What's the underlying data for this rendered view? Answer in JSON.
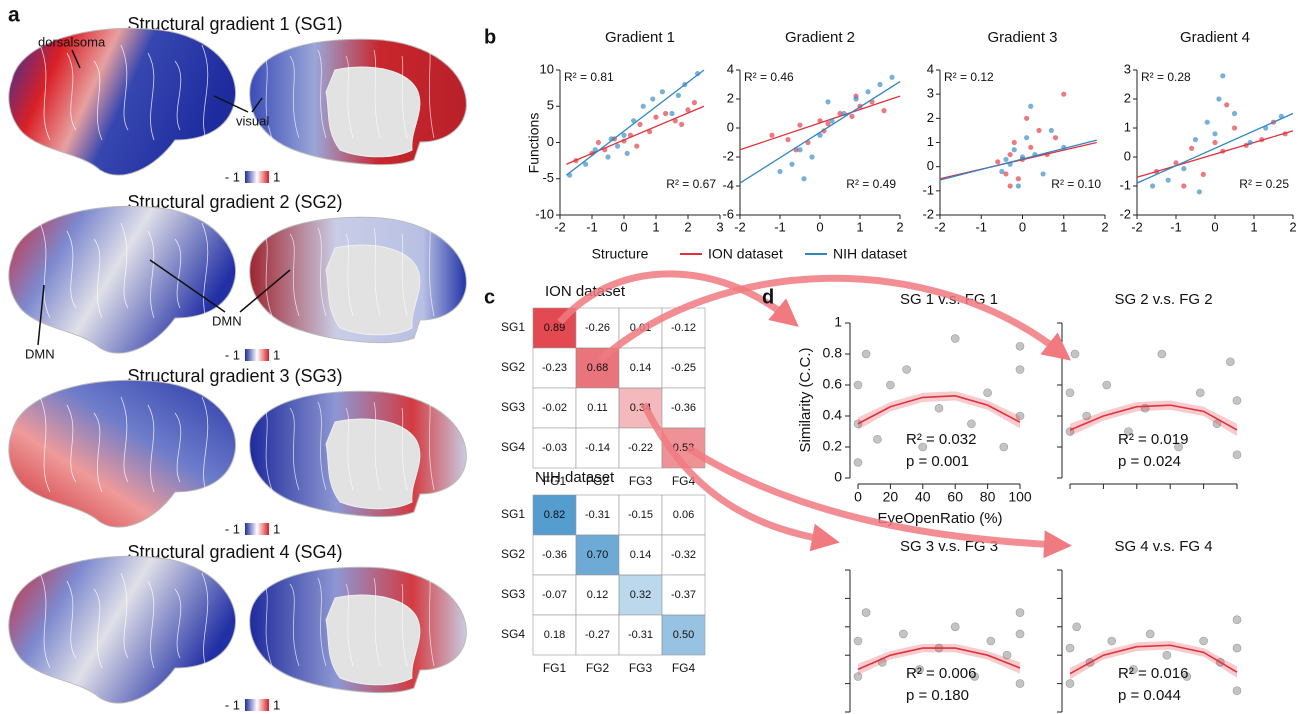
{
  "panel_labels": [
    "a",
    "b",
    "c",
    "d"
  ],
  "panel_a": {
    "titles": [
      "Structural gradient 1 (SG1)",
      "Structural gradient 2 (SG2)",
      "Structural gradient 3 (SG3)",
      "Structural gradient 4 (SG4)"
    ],
    "colorbar": {
      "low": "- 1",
      "high": "1"
    },
    "annotations": [
      "dorsalsoma",
      "visual",
      "DMN",
      "DMN"
    ]
  },
  "panel_b": {
    "type": "scatter",
    "y_label": "Functions",
    "x_label": "Structure",
    "datasets": [
      {
        "name": "ION dataset",
        "color": "#e0323c"
      },
      {
        "name": "NIH dataset",
        "color": "#2f86c4"
      }
    ],
    "plots": [
      {
        "title": "Gradient 1",
        "xlim": [
          -2,
          3
        ],
        "xticks": [
          -2,
          -1,
          0,
          1,
          2,
          3
        ],
        "ylim": [
          -10,
          10
        ],
        "yticks": [
          -10,
          -5,
          0,
          5,
          10
        ],
        "series": [
          {
            "r2_label": "R² = 0.81",
            "x": [
              -1.5,
              -1.0,
              -0.6,
              -0.3,
              0,
              0.2,
              0.5,
              0.8,
              1.0,
              1.3,
              1.6,
              2.0,
              2.2,
              -0.8,
              0.4,
              1.8
            ],
            "y": [
              -2.5,
              -1.5,
              -1.0,
              0.5,
              0.2,
              1.0,
              2.5,
              1.5,
              3.5,
              4.0,
              3.0,
              4.5,
              5.5,
              0.0,
              -0.5,
              2.5
            ],
            "fit_x": [
              -1.8,
              2.5
            ],
            "fit_y": [
              -3,
              5
            ]
          },
          {
            "r2_label": "R² = 0.67",
            "x": [
              -1.7,
              -1.2,
              -0.9,
              -0.5,
              -0.2,
              0,
              0.3,
              0.6,
              0.9,
              1.2,
              1.5,
              1.9,
              2.3,
              -0.4,
              0.1,
              1.7
            ],
            "y": [
              -4.5,
              -3,
              -1,
              -2,
              -0.5,
              1,
              3,
              5,
              6,
              7,
              4,
              8,
              9.5,
              0.5,
              -1.5,
              6.5
            ],
            "fit_x": [
              -1.8,
              2.5
            ],
            "fit_y": [
              -4.5,
              10
            ]
          }
        ]
      },
      {
        "title": "Gradient 2",
        "xlim": [
          -2,
          2
        ],
        "xticks": [
          -2,
          -1,
          0,
          1,
          2
        ],
        "ylim": [
          -6,
          4
        ],
        "yticks": [
          -6,
          -4,
          -2,
          0,
          2,
          4
        ],
        "series": [
          {
            "r2_label": "R² = 0.46",
            "x": [
              -1.2,
              -0.8,
              -0.5,
              -0.3,
              0,
              0.2,
              0.5,
              0.8,
              1.0,
              1.3,
              1.6,
              -0.6,
              0.1,
              0.9
            ],
            "y": [
              -0.5,
              -0.8,
              0.2,
              -1.0,
              0.5,
              0.3,
              1.0,
              0.8,
              1.5,
              1.8,
              1.2,
              -1.5,
              -0.2,
              2.2
            ],
            "fit_x": [
              -2,
              2
            ],
            "fit_y": [
              -1.5,
              2.2
            ]
          },
          {
            "r2_label": "R² = 0.49",
            "x": [
              -1.0,
              -0.7,
              -0.5,
              -0.2,
              0,
              0.3,
              0.6,
              0.9,
              1.2,
              1.5,
              1.8,
              -0.4,
              0.2
            ],
            "y": [
              -3.0,
              -2.5,
              -1.5,
              -2.0,
              -0.5,
              0.5,
              1.0,
              2.0,
              2.5,
              3.0,
              3.5,
              -3.5,
              1.8
            ],
            "fit_x": [
              -2,
              2
            ],
            "fit_y": [
              -3.8,
              3.2
            ]
          }
        ]
      },
      {
        "title": "Gradient 3",
        "xlim": [
          -2,
          2
        ],
        "xticks": [
          -2,
          -1,
          0,
          1,
          2
        ],
        "ylim": [
          -2,
          4
        ],
        "yticks": [
          -2,
          -1,
          0,
          1,
          2,
          3,
          4
        ],
        "series": [
          {
            "r2_label": "R² = 0.12",
            "x": [
              -0.6,
              -0.4,
              -0.3,
              -0.2,
              -0.1,
              0,
              0.2,
              0.4,
              0.6,
              1.0,
              -0.3,
              0.1,
              0.8
            ],
            "y": [
              0.2,
              -0.3,
              0.5,
              1.0,
              -0.5,
              0.3,
              0.8,
              1.5,
              0.5,
              3.0,
              -0.8,
              2.0,
              1.2
            ],
            "fit_x": [
              -2,
              1.8
            ],
            "fit_y": [
              -0.5,
              1.0
            ]
          },
          {
            "r2_label": "R² = 0.10",
            "x": [
              -0.5,
              -0.3,
              -0.2,
              -0.1,
              0,
              0.1,
              0.3,
              0.5,
              0.7,
              1.0,
              -0.4,
              0.2
            ],
            "y": [
              -0.2,
              0.1,
              0.7,
              -0.8,
              0.4,
              1.2,
              0.5,
              -0.3,
              1.5,
              0.8,
              0.3,
              2.5
            ],
            "fit_x": [
              -2,
              1.8
            ],
            "fit_y": [
              -0.55,
              1.1
            ]
          }
        ]
      },
      {
        "title": "Gradient 4",
        "xlim": [
          -2,
          2
        ],
        "xticks": [
          -2,
          -1,
          0,
          1,
          2
        ],
        "ylim": [
          -2,
          3
        ],
        "yticks": [
          -2,
          -1,
          0,
          1,
          2,
          3
        ],
        "series": [
          {
            "r2_label": "R² = 0.28",
            "x": [
              -1.5,
              -1.0,
              -0.6,
              -0.3,
              0,
              0.2,
              0.5,
              0.8,
              1.2,
              1.5,
              1.8,
              -0.8,
              0.3
            ],
            "y": [
              -0.5,
              -0.2,
              0.3,
              -0.6,
              0.5,
              0.2,
              1.0,
              0.4,
              0.6,
              1.2,
              0.8,
              -1.0,
              1.8
            ],
            "fit_x": [
              -2,
              2
            ],
            "fit_y": [
              -0.7,
              0.9
            ]
          },
          {
            "r2_label": "R² = 0.25",
            "x": [
              -1.6,
              -1.2,
              -0.8,
              -0.5,
              -0.2,
              0,
              0.2,
              0.5,
              0.9,
              1.3,
              1.7,
              -0.4,
              0.1
            ],
            "y": [
              -1.0,
              -0.8,
              -0.4,
              0.6,
              1.2,
              0.8,
              2.8,
              1.5,
              0.5,
              1.0,
              1.4,
              -1.2,
              2.0
            ],
            "fit_x": [
              -2,
              2
            ],
            "fit_y": [
              -0.9,
              1.5
            ]
          }
        ]
      }
    ]
  },
  "panel_c": {
    "matrices": [
      {
        "title": "ION dataset",
        "color": "#e0323c",
        "rows": [
          "SG1",
          "SG2",
          "SG3",
          "SG4"
        ],
        "cols": [
          "FG1",
          "FG2",
          "FG3",
          "FG4"
        ],
        "values": [
          [
            0.89,
            -0.26,
            0.01,
            -0.12
          ],
          [
            -0.23,
            0.68,
            0.14,
            -0.25
          ],
          [
            -0.02,
            0.11,
            0.34,
            -0.36
          ],
          [
            -0.03,
            -0.14,
            -0.22,
            0.53
          ]
        ],
        "value_labels": [
          [
            "0.89",
            "-0.26",
            "0.01",
            "-0.12"
          ],
          [
            "-0.23",
            "0.68",
            "0.14",
            "-0.25"
          ],
          [
            "-0.02",
            "0.11",
            "0.34",
            "-0.36"
          ],
          [
            "-0.03",
            "-0.14",
            "-0.22",
            "0.53"
          ]
        ]
      },
      {
        "title": "NIH dataset",
        "color": "#2f86c4",
        "rows": [
          "SG1",
          "SG2",
          "SG3",
          "SG4"
        ],
        "cols": [
          "FG1",
          "FG2",
          "FG3",
          "FG4"
        ],
        "values": [
          [
            0.82,
            -0.31,
            -0.15,
            0.06
          ],
          [
            -0.36,
            0.7,
            0.14,
            -0.32
          ],
          [
            -0.07,
            0.12,
            0.32,
            -0.37
          ],
          [
            0.18,
            -0.27,
            -0.31,
            0.5
          ]
        ],
        "value_labels": [
          [
            "0.82",
            "-0.31",
            "-0.15",
            "0.06"
          ],
          [
            "-0.36",
            "0.70",
            "0.14",
            "-0.32"
          ],
          [
            "-0.07",
            "0.12",
            "0.32",
            "-0.37"
          ],
          [
            "0.18",
            "-0.27",
            "-0.31",
            "0.50"
          ]
        ]
      }
    ]
  },
  "panel_d": {
    "type": "scatter",
    "x_label": "EyeOpenRatio (%)",
    "y_label": "Similarity (C.C.)",
    "xlim": [
      0,
      100
    ],
    "xticks": [
      0,
      20,
      40,
      60,
      80,
      100
    ],
    "ylim": [
      0,
      1
    ],
    "yticks": [
      0,
      0.2,
      0.4,
      0.6,
      0.8,
      1
    ],
    "color": "#e0323c",
    "plots": [
      {
        "title": "SG 1 v.s. FG 1",
        "r2_label": "R² = 0.032",
        "p_label": "p = 0.001",
        "x": [
          0,
          0,
          0,
          5,
          12,
          20,
          30,
          40,
          50,
          60,
          70,
          80,
          90,
          100,
          100,
          100
        ],
        "y": [
          0.1,
          0.35,
          0.6,
          0.8,
          0.25,
          0.6,
          0.7,
          0.2,
          0.45,
          0.9,
          0.35,
          0.55,
          0.2,
          0.4,
          0.7,
          0.85
        ],
        "fit_x": [
          0,
          20,
          40,
          60,
          80,
          100
        ],
        "fit_y": [
          0.35,
          0.46,
          0.52,
          0.53,
          0.47,
          0.36
        ],
        "band_lower": [
          0.31,
          0.43,
          0.49,
          0.5,
          0.44,
          0.32
        ],
        "band_upper": [
          0.39,
          0.49,
          0.55,
          0.56,
          0.5,
          0.4
        ]
      },
      {
        "title": "SG 2 v.s. FG 2",
        "r2_label": "R² = 0.019",
        "p_label": "p = 0.024",
        "x": [
          0,
          0,
          3,
          10,
          22,
          35,
          45,
          55,
          65,
          78,
          88,
          96,
          100,
          100
        ],
        "y": [
          0.3,
          0.55,
          0.8,
          0.4,
          0.6,
          0.3,
          0.45,
          0.8,
          0.2,
          0.55,
          0.35,
          0.75,
          0.15,
          0.5
        ],
        "fit_x": [
          0,
          20,
          40,
          60,
          80,
          100
        ],
        "fit_y": [
          0.31,
          0.4,
          0.46,
          0.47,
          0.43,
          0.31
        ],
        "band_lower": [
          0.27,
          0.37,
          0.43,
          0.44,
          0.4,
          0.27
        ],
        "band_upper": [
          0.35,
          0.43,
          0.49,
          0.5,
          0.46,
          0.35
        ]
      },
      {
        "title": "SG 3 v.s. FG 3",
        "r2_label": "R² = 0.006",
        "p_label": "p = 0.180",
        "x": [
          0,
          0,
          5,
          15,
          28,
          38,
          50,
          60,
          72,
          82,
          92,
          100,
          100,
          100
        ],
        "y": [
          0.25,
          0.5,
          0.7,
          0.35,
          0.55,
          0.3,
          0.45,
          0.6,
          0.25,
          0.5,
          0.4,
          0.2,
          0.55,
          0.7
        ],
        "fit_x": [
          0,
          20,
          40,
          60,
          80,
          100
        ],
        "fit_y": [
          0.3,
          0.4,
          0.45,
          0.45,
          0.4,
          0.31
        ],
        "band_lower": [
          0.26,
          0.37,
          0.42,
          0.42,
          0.37,
          0.27
        ],
        "band_upper": [
          0.34,
          0.43,
          0.48,
          0.48,
          0.43,
          0.35
        ]
      },
      {
        "title": "SG 4 v.s. FG 4",
        "r2_label": "R² = 0.016",
        "p_label": "p = 0.044",
        "x": [
          0,
          0,
          4,
          12,
          25,
          38,
          48,
          58,
          70,
          80,
          90,
          100,
          100,
          100
        ],
        "y": [
          0.2,
          0.45,
          0.6,
          0.35,
          0.5,
          0.3,
          0.55,
          0.4,
          0.25,
          0.5,
          0.35,
          0.15,
          0.45,
          0.65
        ],
        "fit_x": [
          0,
          20,
          40,
          60,
          80,
          100
        ],
        "fit_y": [
          0.27,
          0.4,
          0.46,
          0.47,
          0.42,
          0.28
        ],
        "band_lower": [
          0.23,
          0.37,
          0.43,
          0.44,
          0.39,
          0.24
        ],
        "band_upper": [
          0.31,
          0.43,
          0.49,
          0.5,
          0.45,
          0.32
        ]
      }
    ]
  }
}
